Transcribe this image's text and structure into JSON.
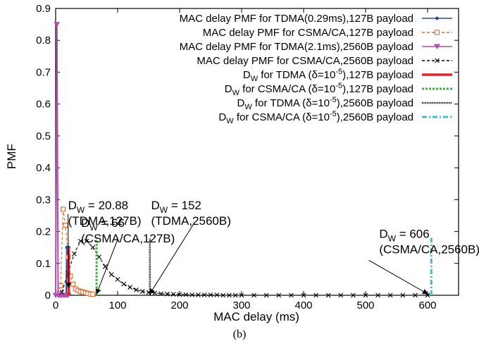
{
  "caption": "(b)",
  "chart_data": {
    "type": "line",
    "xlabel": "MAC delay (ms)",
    "ylabel": "PMF",
    "xlim": [
      0,
      650
    ],
    "ylim": [
      0,
      0.9
    ],
    "x_ticks": [
      "0",
      "100",
      "200",
      "300",
      "400",
      "500",
      "600"
    ],
    "y_ticks": [
      "0",
      "0.1",
      "0.2",
      "0.3",
      "0.4",
      "0.5",
      "0.6",
      "0.7",
      "0.8",
      "0.9"
    ],
    "grid": false,
    "legend_position": "top-right",
    "series": [
      {
        "name": "MAC delay PMF for TDMA(0.29ms),127B payload",
        "color": "#2b4c9b",
        "style": "solid",
        "marker": "dot",
        "x": [
          17,
          18,
          19,
          20,
          21,
          22
        ],
        "y": [
          0.004,
          0.15,
          0.15,
          0.15,
          0.15,
          0.004
        ]
      },
      {
        "name": "MAC delay PMF for CSMA/CA,127B payload",
        "color": "#e0682a",
        "style": "dashed",
        "marker": "square",
        "x": [
          4,
          8,
          12,
          16,
          20,
          24,
          28,
          32,
          36,
          40,
          44,
          48,
          52,
          56,
          60
        ],
        "y": [
          0.005,
          0.03,
          0.27,
          0.22,
          0.12,
          0.06,
          0.035,
          0.02,
          0.015,
          0.012,
          0.01,
          0.008,
          0.006,
          0.004,
          0.003
        ]
      },
      {
        "name": "MAC delay PMF for TDMA(2.1ms),2560B payload",
        "color": "#b04fb0",
        "style": "solid",
        "marker": "triangle-down",
        "x": [
          0,
          2,
          4,
          6,
          8,
          10,
          12,
          14,
          16,
          18,
          20
        ],
        "y": [
          0.0,
          0.85,
          0.0,
          0.0,
          0.0,
          0.0,
          0.0,
          0.0,
          0.0,
          0.0,
          0.0
        ]
      },
      {
        "name": "MAC delay PMF for CSMA/CA,2560B payload",
        "color": "#000000",
        "style": "dashed",
        "marker": "x",
        "x": [
          10,
          20,
          30,
          40,
          50,
          60,
          70,
          80,
          90,
          100,
          110,
          120,
          130,
          140,
          150,
          160,
          170,
          180,
          190,
          200,
          210,
          220,
          230,
          240,
          250,
          260,
          270,
          280,
          290,
          300,
          320,
          340,
          360,
          380,
          400,
          420,
          440,
          460,
          480,
          500,
          520,
          540,
          560,
          580,
          600
        ],
        "y": [
          0.01,
          0.07,
          0.13,
          0.17,
          0.17,
          0.15,
          0.12,
          0.09,
          0.065,
          0.05,
          0.035,
          0.025,
          0.017,
          0.012,
          0.009,
          0.007,
          0.005,
          0.004,
          0.003,
          0.002,
          0.002,
          0.001,
          0.001,
          0.001,
          0.001,
          0.001,
          0.0,
          0.0,
          0.0,
          0.0,
          0.0,
          0.0,
          0.0,
          0.0,
          0.0,
          0.0,
          0.0,
          0.0,
          0.0,
          0.0,
          0.0,
          0.0,
          0.0,
          0.0,
          0.0
        ]
      }
    ],
    "vlines": [
      {
        "name": "D_W for TDMA (δ=10^-5),127B payload",
        "x": 20.88,
        "height": 0.15,
        "color": "#e8222a",
        "style": "thick"
      },
      {
        "name": "D_W for CSMA/CA (δ=10^-5),127B payload",
        "x": 66,
        "height": 0.18,
        "color": "#3fb23f",
        "style": "dotted"
      },
      {
        "name": "D_W for TDMA (δ=10^-5),2560B payload",
        "x": 152,
        "height": 0.18,
        "color": "#000000",
        "style": "dense"
      },
      {
        "name": "D_W for CSMA/CA (δ=10^-5),2560B payload",
        "x": 606,
        "height": 0.18,
        "color": "#3bbfcf",
        "style": "dashdot"
      }
    ],
    "legend": [
      {
        "label": "MAC delay PMF for TDMA(0.29ms),127B payload",
        "color": "#2b4c9b",
        "line": "solid",
        "marker": "dot"
      },
      {
        "label": "MAC delay PMF for CSMA/CA,127B payload",
        "color": "#e0682a",
        "line": "dashed",
        "marker": "square"
      },
      {
        "label": "MAC delay PMF for TDMA(2.1ms),2560B payload",
        "color": "#b04fb0",
        "line": "solid",
        "marker": "triangle-down"
      },
      {
        "label": "MAC delay PMF for CSMA/CA,2560B payload",
        "color": "#000000",
        "line": "dashed",
        "marker": "x"
      },
      {
        "pre": "D",
        "sub": "W",
        "mid": " for TDMA (δ=10",
        "sup": "-5",
        "post": "),127B payload",
        "color": "#e8222a",
        "line": "thick"
      },
      {
        "pre": "D",
        "sub": "W",
        "mid": " for CSMA/CA (δ=10",
        "sup": "-5",
        "post": "),127B payload",
        "color": "#3fb23f",
        "line": "dotted"
      },
      {
        "pre": "D",
        "sub": "W",
        "mid": " for TDMA (δ=10",
        "sup": "-5",
        "post": "),2560B payload",
        "color": "#000000",
        "line": "dense"
      },
      {
        "pre": "D",
        "sub": "W",
        "mid": " for CSMA/CA (δ=10",
        "sup": "-5",
        "post": "),2560B payload",
        "color": "#3bbfcf",
        "line": "dashdot"
      }
    ],
    "annotations": [
      {
        "line1_pre": "D",
        "line1_sub": "W",
        "line1_post": " = 20.88",
        "line2": "(TDMA,127B)",
        "tx": 20,
        "ty": 0.27,
        "ax": 20.88,
        "ay": 0.02,
        "sx": 20,
        "sy": 0.255
      },
      {
        "line1_pre": "D",
        "line1_sub": "W",
        "line1_post": " = 66",
        "line2": "(CSMA/CA,127B)",
        "tx": 41,
        "ty": 0.215,
        "ax": 66,
        "ay": 0.0,
        "sx": 100,
        "sy": 0.175
      },
      {
        "line1_pre": "D",
        "line1_sub": "W",
        "line1_post": " = 152",
        "line2": "(TDMA,2560B)",
        "tx": 154,
        "ty": 0.27,
        "ax": 152,
        "ay": 0.0,
        "sx": 224,
        "sy": 0.228
      },
      {
        "line1_pre": "D",
        "line1_sub": "W",
        "line1_post": " = 606",
        "line2": "(CSMA/CA,2560B)",
        "tx": 522,
        "ty": 0.18,
        "ax": 600,
        "ay": 0.0,
        "sx": 505,
        "sy": 0.11
      }
    ]
  }
}
